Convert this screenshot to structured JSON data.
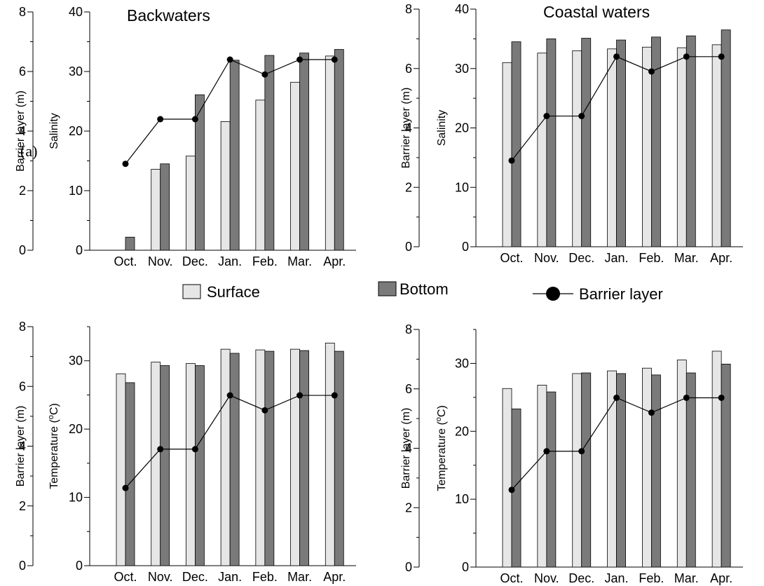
{
  "legend": {
    "surface": "Surface",
    "bottom": "Bottom",
    "barrier": "Barrier layer",
    "colors": {
      "surface": "#e6e6e6",
      "bottom": "#7a7a7a",
      "line": "#000000"
    }
  },
  "panel_tag": "(a)",
  "chart_data": [
    {
      "type": "bar",
      "title": "Backwaters",
      "categories": [
        "Oct.",
        "Nov.",
        "Dec.",
        "Jan.",
        "Feb.",
        "Mar.",
        "Apr."
      ],
      "left_axis_label": "Barrier layer (m)",
      "left_ylim": [
        0,
        8
      ],
      "left_ticks": [
        0,
        2,
        4,
        6,
        8
      ],
      "right_axis_label": "Salinity",
      "right_ylim": [
        0,
        40
      ],
      "right_ticks": [
        0,
        10,
        20,
        30,
        40
      ],
      "series": [
        {
          "name": "Surface",
          "axis": "right",
          "values": [
            0,
            13.6,
            15.8,
            21.6,
            25.2,
            28.2,
            32.6
          ]
        },
        {
          "name": "Bottom",
          "axis": "right",
          "values": [
            2.2,
            14.5,
            26.1,
            31.9,
            32.7,
            33.1,
            33.7
          ]
        },
        {
          "name": "Barrier layer",
          "axis": "left",
          "type": "line",
          "values": [
            2.9,
            4.4,
            4.4,
            6.4,
            5.9,
            6.4,
            6.4
          ]
        }
      ]
    },
    {
      "type": "bar",
      "title": "Coastal waters",
      "categories": [
        "Oct.",
        "Nov.",
        "Dec.",
        "Jan.",
        "Feb.",
        "Mar.",
        "Apr."
      ],
      "left_axis_label": "Barrier layer (m)",
      "left_ylim": [
        0,
        8
      ],
      "left_ticks": [
        0,
        2,
        4,
        6,
        8
      ],
      "right_axis_label": "Salinity",
      "right_ylim": [
        0,
        40
      ],
      "right_ticks": [
        0,
        10,
        20,
        30,
        40
      ],
      "series": [
        {
          "name": "Surface",
          "axis": "right",
          "values": [
            31.0,
            32.6,
            33.0,
            33.3,
            33.6,
            33.5,
            34.0
          ]
        },
        {
          "name": "Bottom",
          "axis": "right",
          "values": [
            34.5,
            35.0,
            35.1,
            34.8,
            35.3,
            35.5,
            36.5
          ]
        },
        {
          "name": "Barrier layer",
          "axis": "left",
          "type": "line",
          "values": [
            2.9,
            4.4,
            4.4,
            6.4,
            5.9,
            6.4,
            6.4
          ]
        }
      ]
    },
    {
      "type": "bar",
      "title": "",
      "categories": [
        "Oct.",
        "Nov.",
        "Dec.",
        "Jan.",
        "Feb.",
        "Mar.",
        "Apr."
      ],
      "left_axis_label": "Barrier layer (m)",
      "left_ylim": [
        0,
        8
      ],
      "left_ticks": [
        0,
        2,
        4,
        6,
        8
      ],
      "right_axis_label": "Temperature (",
      "right_axis_unit": "oC",
      "right_axis_close": ")",
      "right_ylim": [
        0,
        35
      ],
      "right_ticks": [
        0,
        10,
        20,
        30
      ],
      "series": [
        {
          "name": "Surface",
          "axis": "right",
          "values": [
            28.1,
            29.8,
            29.6,
            31.7,
            31.6,
            31.7,
            32.6
          ]
        },
        {
          "name": "Bottom",
          "axis": "right",
          "values": [
            26.8,
            29.3,
            29.3,
            31.1,
            31.4,
            31.5,
            31.4
          ]
        },
        {
          "name": "Barrier layer",
          "axis": "left",
          "type": "line",
          "values": [
            2.6,
            3.9,
            3.9,
            5.7,
            5.2,
            5.7,
            5.7
          ]
        }
      ]
    },
    {
      "type": "bar",
      "title": "",
      "categories": [
        "Oct.",
        "Nov.",
        "Dec.",
        "Jan.",
        "Feb.",
        "Mar.",
        "Apr."
      ],
      "left_axis_label": "Barrier layer (m)",
      "left_ylim": [
        0,
        8
      ],
      "left_ticks": [
        0,
        2,
        4,
        6,
        8
      ],
      "right_axis_label": "Temperature (",
      "right_axis_unit": "oC",
      "right_axis_close": ")",
      "right_ylim": [
        0,
        35
      ],
      "right_ticks": [
        0,
        10,
        20,
        30
      ],
      "series": [
        {
          "name": "Surface",
          "axis": "right",
          "values": [
            26.3,
            26.8,
            28.5,
            28.9,
            29.3,
            30.5,
            31.8
          ]
        },
        {
          "name": "Bottom",
          "axis": "right",
          "values": [
            23.3,
            25.8,
            28.6,
            28.5,
            28.3,
            28.6,
            29.9
          ]
        },
        {
          "name": "Barrier layer",
          "axis": "left",
          "type": "line",
          "values": [
            2.6,
            3.9,
            3.9,
            5.7,
            5.2,
            5.7,
            5.7
          ]
        }
      ]
    }
  ]
}
